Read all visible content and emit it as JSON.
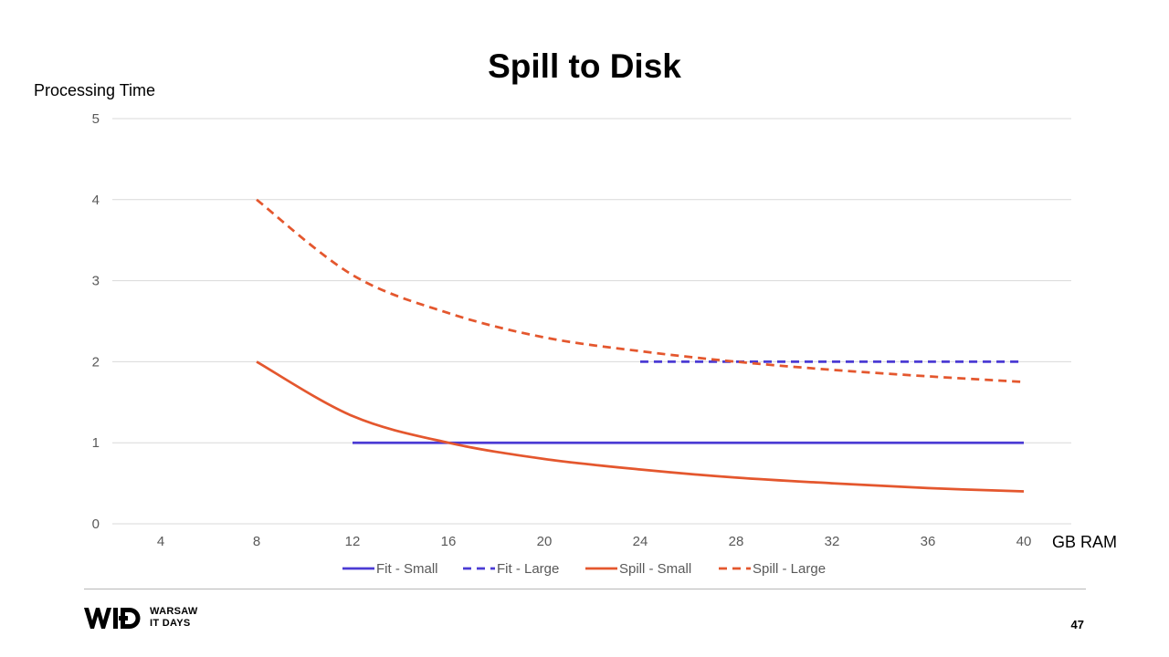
{
  "slide": {
    "title": "Spill to Disk",
    "page_number": "47",
    "logo": {
      "mark": "WID",
      "line1": "WARSAW",
      "line2": "IT DAYS"
    }
  },
  "colors": {
    "fit": "#4b3bd4",
    "spill": "#e4572e",
    "grid": "#d9d9d9",
    "tick_text": "#595959"
  },
  "chart_data": {
    "type": "line",
    "title": "Spill to Disk",
    "xlabel": "GB RAM",
    "ylabel": "Processing Time",
    "x": [
      4,
      8,
      12,
      16,
      20,
      24,
      28,
      32,
      36,
      40
    ],
    "xlim": [
      4,
      40
    ],
    "ylim": [
      0,
      5
    ],
    "yticks": [
      0,
      1,
      2,
      3,
      4,
      5
    ],
    "grid": true,
    "legend_position": "bottom",
    "series": [
      {
        "name": "Fit - Small",
        "style": "solid",
        "color": "#4b3bd4",
        "points": [
          [
            12,
            1
          ],
          [
            16,
            1
          ],
          [
            20,
            1
          ],
          [
            24,
            1
          ],
          [
            28,
            1
          ],
          [
            32,
            1
          ],
          [
            36,
            1
          ],
          [
            40,
            1
          ]
        ]
      },
      {
        "name": "Fit - Large",
        "style": "dashed",
        "color": "#4b3bd4",
        "points": [
          [
            24,
            2
          ],
          [
            28,
            2
          ],
          [
            32,
            2
          ],
          [
            36,
            2
          ],
          [
            40,
            2
          ]
        ]
      },
      {
        "name": "Spill - Small",
        "style": "solid",
        "color": "#e4572e",
        "points": [
          [
            8,
            2
          ],
          [
            12,
            1.33
          ],
          [
            16,
            1
          ],
          [
            20,
            0.8
          ],
          [
            24,
            0.67
          ],
          [
            28,
            0.57
          ],
          [
            32,
            0.5
          ],
          [
            36,
            0.44
          ],
          [
            40,
            0.4
          ]
        ]
      },
      {
        "name": "Spill - Large",
        "style": "dashed",
        "color": "#e4572e",
        "points": [
          [
            8,
            4
          ],
          [
            12,
            3.07
          ],
          [
            16,
            2.6
          ],
          [
            20,
            2.3
          ],
          [
            24,
            2.13
          ],
          [
            28,
            2.0
          ],
          [
            32,
            1.9
          ],
          [
            36,
            1.82
          ],
          [
            40,
            1.75
          ]
        ]
      }
    ]
  }
}
